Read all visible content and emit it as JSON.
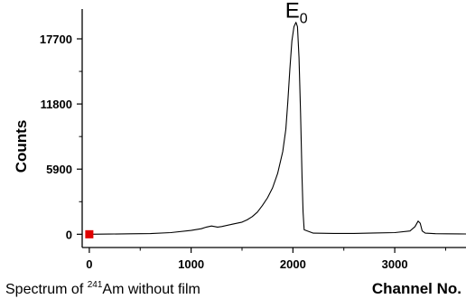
{
  "chart_data": {
    "type": "line",
    "title": "",
    "caption": {
      "prefix": "Spectrum of ",
      "superscript": "241",
      "suffix": "Am without  film"
    },
    "xlabel": "Channel No.",
    "ylabel": "Counts",
    "xlim": [
      -70,
      3700
    ],
    "ylim": [
      -1200,
      20400
    ],
    "xticks": [
      0,
      1000,
      2000,
      3000
    ],
    "yticks": [
      0,
      5900,
      11800,
      17700
    ],
    "grid": false,
    "legend": "none",
    "annotation": {
      "main": "E",
      "sub": "0",
      "at": [
        2030,
        19300
      ]
    },
    "marker": {
      "x": 0,
      "y": 0,
      "color": "#e00000"
    },
    "series": [
      {
        "color": "#000000",
        "x": [
          0,
          200,
          400,
          600,
          800,
          1000,
          1100,
          1150,
          1200,
          1230,
          1260,
          1300,
          1400,
          1500,
          1550,
          1600,
          1650,
          1700,
          1750,
          1800,
          1850,
          1900,
          1930,
          1950,
          1970,
          1990,
          2010,
          2030,
          2045,
          2060,
          2075,
          2090,
          2100,
          2110,
          2200,
          2400,
          2600,
          2800,
          3000,
          3150,
          3200,
          3230,
          3250,
          3270,
          3300,
          3400,
          3500,
          3700
        ],
        "y": [
          0,
          20,
          40,
          60,
          150,
          350,
          500,
          650,
          750,
          700,
          650,
          700,
          900,
          1100,
          1300,
          1600,
          2000,
          2600,
          3300,
          4200,
          5500,
          7500,
          9500,
          12000,
          15000,
          17500,
          18800,
          19200,
          18800,
          16000,
          11000,
          5000,
          2000,
          400,
          100,
          80,
          80,
          120,
          150,
          300,
          700,
          1200,
          1000,
          300,
          100,
          50,
          40,
          30
        ]
      }
    ]
  }
}
